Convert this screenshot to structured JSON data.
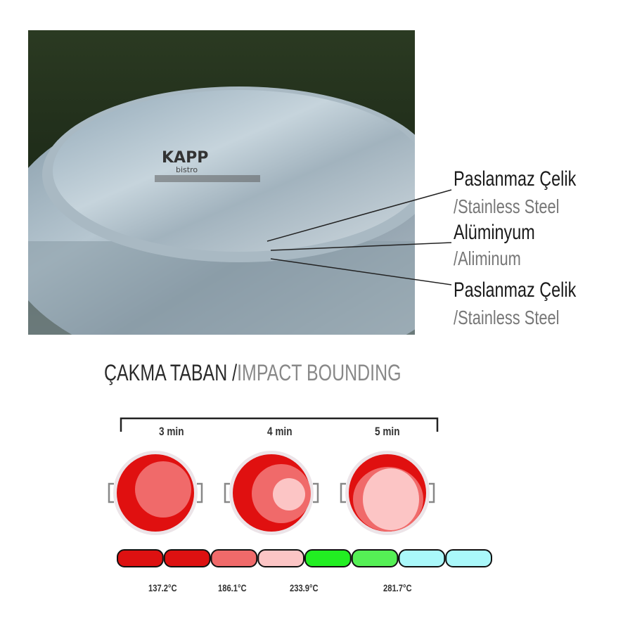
{
  "photo": {
    "brand_logo": "KAPP",
    "brand_sub": "bistro",
    "layers": [
      {
        "label": "Paslanmaz Çelik",
        "translation": "/Stainless Steel"
      },
      {
        "label": "Alüminyum",
        "translation": "/Aliminum"
      },
      {
        "label": "Paslanmaz Çelik",
        "translation": "/Stainless Steel"
      }
    ]
  },
  "section": {
    "title_tr": "ÇAKMA TABAN /",
    "title_en": "IMPACT BOUNDING"
  },
  "times": [
    "3 min",
    "4 min",
    "5 min"
  ],
  "scale": {
    "colors": [
      "#dd1111",
      "#dd1111",
      "#f06a6a",
      "#fcc5c5",
      "#22ee22",
      "#55f055",
      "#aaf8fa",
      "#aaf8fa"
    ],
    "temperatures": [
      "137.2°C",
      "186.1°C",
      "233.9°C",
      "281.7°C"
    ]
  }
}
